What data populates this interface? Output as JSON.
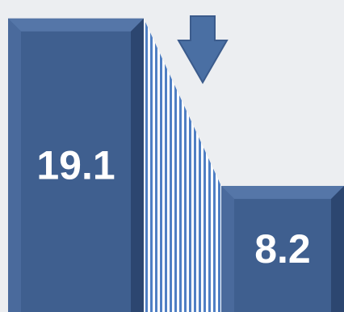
{
  "chart_data": {
    "type": "bar",
    "categories": [
      "",
      ""
    ],
    "values": [
      19.1,
      8.2
    ],
    "data_labels": [
      "19.1",
      "8.2"
    ],
    "title": "",
    "xlabel": "",
    "ylabel": "",
    "ylim": [
      0,
      20.3
    ],
    "grid": false,
    "legend": "none",
    "annotations": [
      "down-arrow-icon"
    ],
    "colors": {
      "bar": "#3f5f8f",
      "bar_light": "#5576a8",
      "bar_dark": "#2c4670",
      "connector_stripe": "#4f7fc4",
      "arrow": "#4a6fa3",
      "background": "#eceef1"
    }
  }
}
